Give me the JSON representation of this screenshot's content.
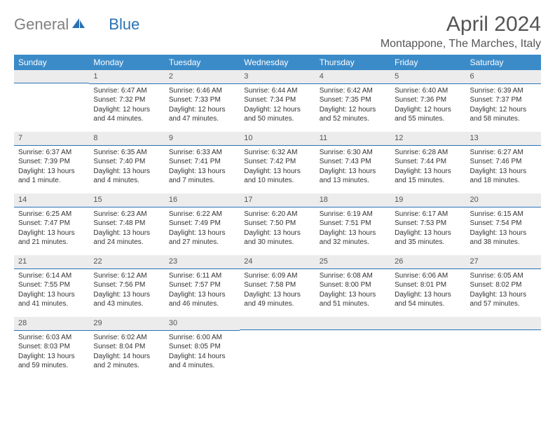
{
  "brand": {
    "part1": "General",
    "part2": "Blue"
  },
  "title": "April 2024",
  "location": "Montappone, The Marches, Italy",
  "colors": {
    "header_bg": "#3b8bc9",
    "header_fg": "#ffffff",
    "daynum_bg": "#ececec",
    "rule": "#2a72b5",
    "brand_gray": "#808080",
    "brand_blue": "#2a72b5"
  },
  "daynames": [
    "Sunday",
    "Monday",
    "Tuesday",
    "Wednesday",
    "Thursday",
    "Friday",
    "Saturday"
  ],
  "weeks": [
    [
      null,
      {
        "n": "1",
        "sr": "6:47 AM",
        "ss": "7:32 PM",
        "dl": "12 hours and 44 minutes."
      },
      {
        "n": "2",
        "sr": "6:46 AM",
        "ss": "7:33 PM",
        "dl": "12 hours and 47 minutes."
      },
      {
        "n": "3",
        "sr": "6:44 AM",
        "ss": "7:34 PM",
        "dl": "12 hours and 50 minutes."
      },
      {
        "n": "4",
        "sr": "6:42 AM",
        "ss": "7:35 PM",
        "dl": "12 hours and 52 minutes."
      },
      {
        "n": "5",
        "sr": "6:40 AM",
        "ss": "7:36 PM",
        "dl": "12 hours and 55 minutes."
      },
      {
        "n": "6",
        "sr": "6:39 AM",
        "ss": "7:37 PM",
        "dl": "12 hours and 58 minutes."
      }
    ],
    [
      {
        "n": "7",
        "sr": "6:37 AM",
        "ss": "7:39 PM",
        "dl": "13 hours and 1 minute."
      },
      {
        "n": "8",
        "sr": "6:35 AM",
        "ss": "7:40 PM",
        "dl": "13 hours and 4 minutes."
      },
      {
        "n": "9",
        "sr": "6:33 AM",
        "ss": "7:41 PM",
        "dl": "13 hours and 7 minutes."
      },
      {
        "n": "10",
        "sr": "6:32 AM",
        "ss": "7:42 PM",
        "dl": "13 hours and 10 minutes."
      },
      {
        "n": "11",
        "sr": "6:30 AM",
        "ss": "7:43 PM",
        "dl": "13 hours and 13 minutes."
      },
      {
        "n": "12",
        "sr": "6:28 AM",
        "ss": "7:44 PM",
        "dl": "13 hours and 15 minutes."
      },
      {
        "n": "13",
        "sr": "6:27 AM",
        "ss": "7:46 PM",
        "dl": "13 hours and 18 minutes."
      }
    ],
    [
      {
        "n": "14",
        "sr": "6:25 AM",
        "ss": "7:47 PM",
        "dl": "13 hours and 21 minutes."
      },
      {
        "n": "15",
        "sr": "6:23 AM",
        "ss": "7:48 PM",
        "dl": "13 hours and 24 minutes."
      },
      {
        "n": "16",
        "sr": "6:22 AM",
        "ss": "7:49 PM",
        "dl": "13 hours and 27 minutes."
      },
      {
        "n": "17",
        "sr": "6:20 AM",
        "ss": "7:50 PM",
        "dl": "13 hours and 30 minutes."
      },
      {
        "n": "18",
        "sr": "6:19 AM",
        "ss": "7:51 PM",
        "dl": "13 hours and 32 minutes."
      },
      {
        "n": "19",
        "sr": "6:17 AM",
        "ss": "7:53 PM",
        "dl": "13 hours and 35 minutes."
      },
      {
        "n": "20",
        "sr": "6:15 AM",
        "ss": "7:54 PM",
        "dl": "13 hours and 38 minutes."
      }
    ],
    [
      {
        "n": "21",
        "sr": "6:14 AM",
        "ss": "7:55 PM",
        "dl": "13 hours and 41 minutes."
      },
      {
        "n": "22",
        "sr": "6:12 AM",
        "ss": "7:56 PM",
        "dl": "13 hours and 43 minutes."
      },
      {
        "n": "23",
        "sr": "6:11 AM",
        "ss": "7:57 PM",
        "dl": "13 hours and 46 minutes."
      },
      {
        "n": "24",
        "sr": "6:09 AM",
        "ss": "7:58 PM",
        "dl": "13 hours and 49 minutes."
      },
      {
        "n": "25",
        "sr": "6:08 AM",
        "ss": "8:00 PM",
        "dl": "13 hours and 51 minutes."
      },
      {
        "n": "26",
        "sr": "6:06 AM",
        "ss": "8:01 PM",
        "dl": "13 hours and 54 minutes."
      },
      {
        "n": "27",
        "sr": "6:05 AM",
        "ss": "8:02 PM",
        "dl": "13 hours and 57 minutes."
      }
    ],
    [
      {
        "n": "28",
        "sr": "6:03 AM",
        "ss": "8:03 PM",
        "dl": "13 hours and 59 minutes."
      },
      {
        "n": "29",
        "sr": "6:02 AM",
        "ss": "8:04 PM",
        "dl": "14 hours and 2 minutes."
      },
      {
        "n": "30",
        "sr": "6:00 AM",
        "ss": "8:05 PM",
        "dl": "14 hours and 4 minutes."
      },
      null,
      null,
      null,
      null
    ]
  ],
  "labels": {
    "sunrise": "Sunrise:",
    "sunset": "Sunset:",
    "daylight": "Daylight:"
  }
}
